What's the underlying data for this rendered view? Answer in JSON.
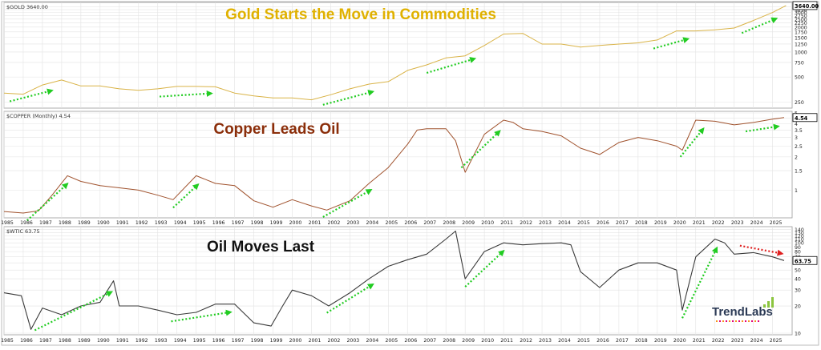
{
  "brand": {
    "name": "TrendLabs"
  },
  "colors": {
    "gold": "#D9B347",
    "copper": "#A0522D",
    "oil": "#000000",
    "green_arrow": "#22CC22",
    "red_arrow": "#E02020",
    "grid": "#E3E3E3",
    "axis_text": "#222222"
  },
  "chart_data": [
    {
      "type": "line",
      "symbol_label": "$GOLD 3640.00",
      "title": "Gold Starts the Move in Commodities",
      "scale": "log",
      "ylim": [
        220,
        3800
      ],
      "y_ticks": [
        250,
        500,
        750,
        1000,
        1250,
        1500,
        1750,
        2000,
        2250,
        2500,
        2750,
        3000,
        3250,
        3500
      ],
      "last_value_label": "3640.00",
      "series": [
        {
          "x": [
            1985,
            1986,
            1987,
            1988,
            1989,
            1990,
            1991,
            1992,
            1993,
            1994,
            1995,
            1996,
            1997,
            1998,
            1999,
            2000,
            2001,
            2002,
            2003,
            2004,
            2005,
            2006,
            2007,
            2008,
            2009,
            2010,
            2011,
            2012,
            2013,
            2014,
            2015,
            2016,
            2017,
            2018,
            2019,
            2020,
            2021,
            2022,
            2023,
            2024,
            2025,
            2025.7
          ],
          "values": [
            320,
            310,
            400,
            460,
            390,
            390,
            360,
            345,
            360,
            385,
            385,
            380,
            320,
            295,
            280,
            280,
            265,
            305,
            360,
            410,
            440,
            600,
            700,
            850,
            900,
            1200,
            1650,
            1680,
            1250,
            1250,
            1150,
            1200,
            1250,
            1290,
            1400,
            1800,
            1800,
            1850,
            1950,
            2400,
            3000,
            3640
          ]
        }
      ],
      "trend_arrows": [
        [
          1985.3,
          1987.5
        ],
        [
          1993.1,
          1995.8
        ],
        [
          2001.6,
          2004.2
        ],
        [
          2007,
          2009.5
        ],
        [
          2018.8,
          2020.6
        ],
        [
          2023.4,
          2025.2
        ]
      ]
    },
    {
      "type": "line",
      "symbol_label": "$COPPER (Monthly) 4.54",
      "title": "Copper Leads Oil",
      "scale": "log",
      "ylim": [
        0.58,
        5.0
      ],
      "y_ticks": [
        1.0,
        1.5,
        2.0,
        2.5,
        3.0,
        3.5,
        4.0,
        4.5,
        5.0
      ],
      "last_value_label": "4.54",
      "series": [
        {
          "x": [
            1985,
            1986,
            1986.8,
            1987.5,
            1988.3,
            1989,
            1990,
            1991,
            1992,
            1993,
            1993.8,
            1995,
            1996,
            1997,
            1998,
            1999,
            2000,
            2001,
            2001.8,
            2003,
            2004,
            2005,
            2006,
            2006.5,
            2007,
            2008,
            2008.5,
            2009,
            2010,
            2011,
            2011.5,
            2012,
            2013,
            2014,
            2015,
            2016,
            2017,
            2018,
            2019,
            2020,
            2020.3,
            2021,
            2022,
            2023,
            2024,
            2025,
            2025.6
          ],
          "values": [
            0.64,
            0.62,
            0.65,
            0.9,
            1.35,
            1.2,
            1.1,
            1.05,
            1.0,
            0.9,
            0.82,
            1.35,
            1.15,
            1.1,
            0.8,
            0.7,
            0.82,
            0.72,
            0.66,
            0.8,
            1.15,
            1.6,
            2.6,
            3.5,
            3.6,
            3.6,
            2.8,
            1.45,
            3.2,
            4.3,
            4.1,
            3.6,
            3.4,
            3.1,
            2.4,
            2.1,
            2.7,
            3.0,
            2.8,
            2.5,
            2.3,
            4.3,
            4.2,
            3.9,
            4.1,
            4.4,
            4.54
          ]
        }
      ],
      "trend_arrows": [
        [
          1986.2,
          1988.3
        ],
        [
          1993.8,
          1995.1
        ],
        [
          2001.6,
          2004.1
        ],
        [
          2008.8,
          2010.8
        ],
        [
          2020.2,
          2021.4
        ],
        [
          2023.6,
          2025.3
        ]
      ]
    },
    {
      "type": "line",
      "symbol_label": "$WTIC 63.75",
      "title": "Oil Moves Last",
      "scale": "log",
      "ylim": [
        10,
        145
      ],
      "y_ticks": [
        10,
        20,
        30,
        40,
        50,
        60,
        70,
        80,
        90,
        100,
        110,
        120,
        130,
        140
      ],
      "last_value_label": "63.75",
      "series": [
        {
          "x": [
            1985,
            1985.9,
            1986.4,
            1987,
            1988,
            1989,
            1990,
            1990.7,
            1991,
            1992,
            1993,
            1994,
            1995,
            1996,
            1997,
            1998,
            1998.9,
            1999.5,
            2000,
            2001,
            2001.9,
            2003,
            2004,
            2005,
            2006,
            2007,
            2008,
            2008.5,
            2009,
            2010,
            2011,
            2012,
            2013,
            2014,
            2014.5,
            2015,
            2016,
            2017,
            2018,
            2019,
            2020,
            2020.3,
            2021,
            2022,
            2022.5,
            2023,
            2024,
            2025,
            2025.6
          ],
          "values": [
            28,
            26,
            11,
            19,
            16,
            20,
            22,
            38,
            20,
            20,
            18,
            16,
            17,
            21,
            21,
            13,
            12,
            20,
            30,
            26,
            20,
            28,
            40,
            55,
            65,
            75,
            110,
            135,
            40,
            80,
            100,
            95,
            98,
            100,
            95,
            48,
            32,
            50,
            60,
            60,
            50,
            18,
            70,
            110,
            100,
            75,
            78,
            70,
            63.75
          ]
        }
      ],
      "trend_arrows": [
        [
          1986.6,
          1990.6
        ],
        [
          1993.7,
          1996.8
        ],
        [
          2001.8,
          2004.2
        ],
        [
          2009,
          2011
        ],
        [
          2020.3,
          2022.1
        ]
      ],
      "down_arrows": [
        [
          2023.3,
          2025.5
        ]
      ]
    }
  ],
  "x_axis": {
    "years": [
      "1985",
      "1986",
      "1987",
      "1988",
      "1989",
      "1990",
      "1991",
      "1992",
      "1993",
      "1994",
      "1995",
      "1996",
      "1997",
      "1998",
      "1999",
      "2000",
      "2001",
      "2002",
      "2003",
      "2004",
      "2005",
      "2006",
      "2007",
      "2008",
      "2009",
      "2010",
      "2011",
      "2012",
      "2013",
      "2014",
      "2015",
      "2016",
      "2017",
      "2018",
      "2019",
      "2020",
      "2021",
      "2022",
      "2023",
      "2024",
      "2025"
    ]
  }
}
